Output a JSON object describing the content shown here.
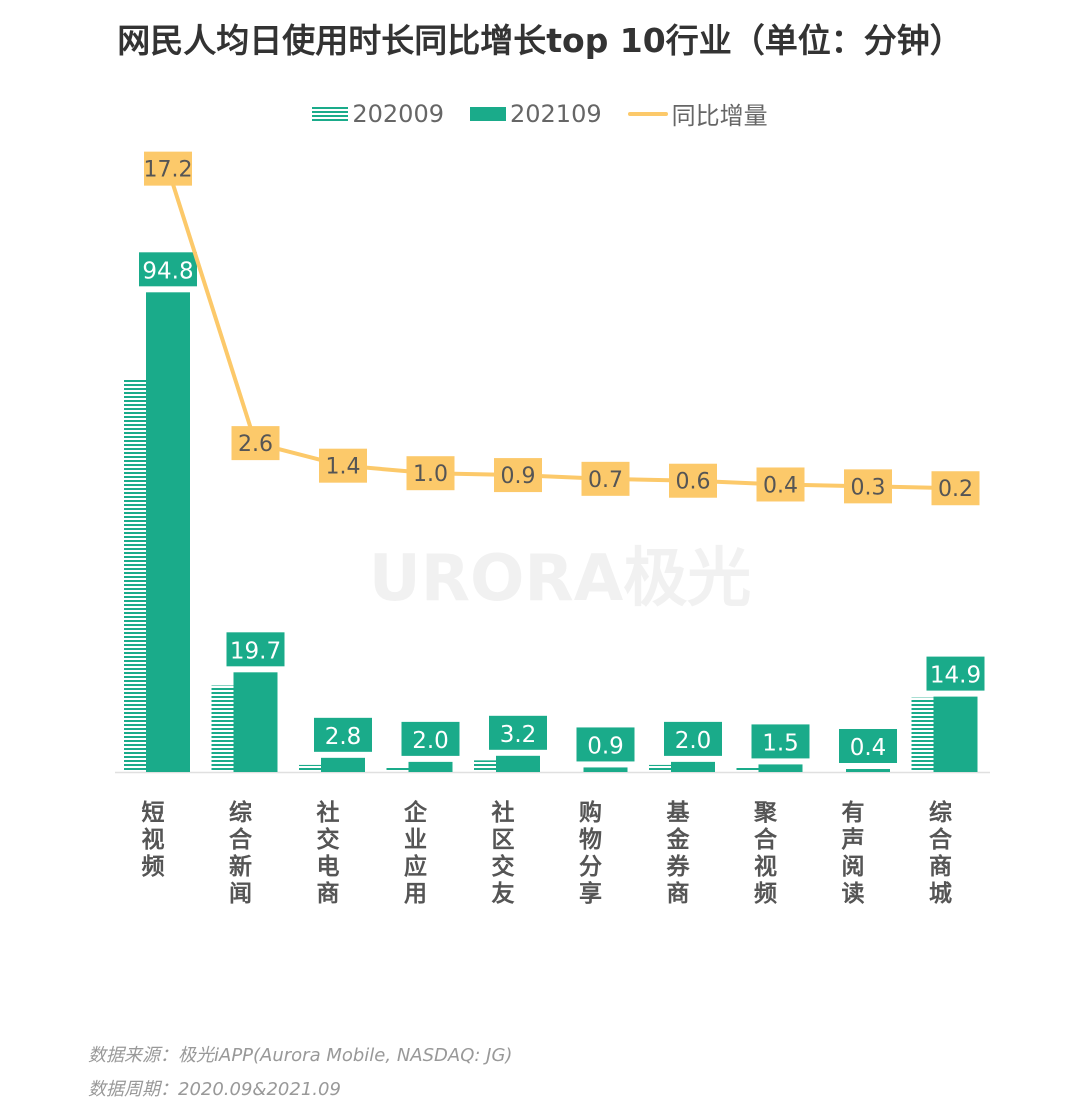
{
  "title": "网民人均日使用时长同比增长top 10行业（单位：分钟）",
  "legend": [
    {
      "label": "202009",
      "style": "hatched"
    },
    {
      "label": "202109",
      "style": "solid"
    },
    {
      "label": "同比增量",
      "style": "line"
    }
  ],
  "watermark": "URORA极光",
  "colors": {
    "bar": "#1aab8a",
    "line": "#fcc96a",
    "label_text_dark": "#555555"
  },
  "chart_data": {
    "type": "bar",
    "title": "网民人均日使用时长同比增长top 10行业（单位：分钟）",
    "categories": [
      "短视频",
      "综合新闻",
      "社交电商",
      "企业应用",
      "社区交友",
      "购物分享",
      "基金券商",
      "聚合视频",
      "有声阅读",
      "综合商城"
    ],
    "series": [
      {
        "name": "202009",
        "type": "bar",
        "values": [
          77.6,
          17.1,
          1.4,
          1.0,
          2.3,
          0.2,
          1.4,
          1.1,
          0.1,
          14.7
        ]
      },
      {
        "name": "202109",
        "type": "bar",
        "values": [
          94.8,
          19.7,
          2.8,
          2.0,
          3.2,
          0.9,
          2.0,
          1.5,
          0.4,
          14.9
        ],
        "labels": [
          "94.8",
          "19.7",
          "2.8",
          "2.0",
          "3.2",
          "0.9",
          "2.0",
          "1.5",
          "0.4",
          "14.9"
        ]
      },
      {
        "name": "同比增量",
        "type": "line",
        "values": [
          17.2,
          2.6,
          1.4,
          1.0,
          0.9,
          0.7,
          0.6,
          0.4,
          0.3,
          0.2
        ],
        "labels": [
          "17.2",
          "2.6",
          "1.4",
          "1.0",
          "0.9",
          "0.7",
          "0.6",
          "0.4",
          "0.3",
          "0.2"
        ]
      }
    ],
    "grid": false,
    "legend_position": "top"
  },
  "footer": {
    "source": "数据来源：极光iAPP(Aurora Mobile, NASDAQ: JG)",
    "period": "数据周期：2020.09&2021.09"
  }
}
